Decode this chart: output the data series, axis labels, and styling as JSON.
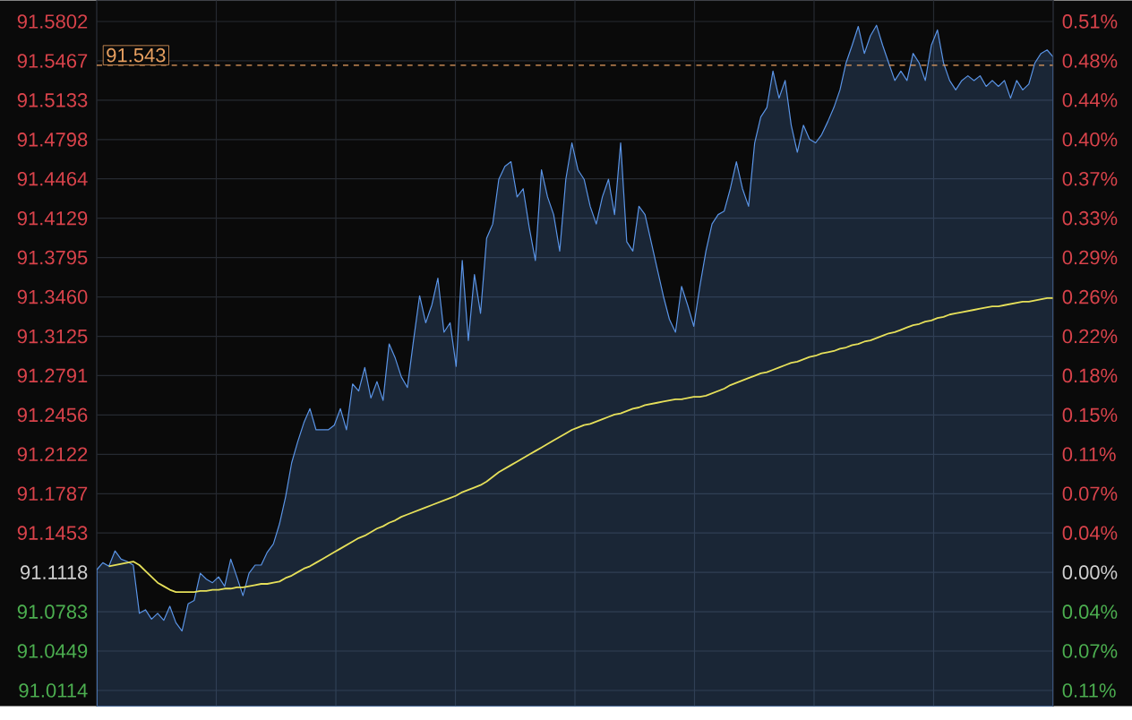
{
  "chart_data": {
    "type": "area",
    "categories": [
      null,
      null,
      null,
      null,
      null,
      null,
      null,
      null,
      null,
      null,
      null,
      null,
      null,
      null,
      null,
      null,
      null,
      null,
      null,
      null,
      null,
      null,
      null,
      null,
      null,
      null,
      null,
      null,
      null,
      null,
      null,
      null,
      null,
      null,
      null,
      null,
      null,
      null,
      null,
      null,
      null,
      null,
      null,
      null,
      null,
      null,
      null,
      null,
      null,
      null,
      null,
      null,
      null,
      null,
      null,
      null,
      null,
      null,
      null,
      null,
      null,
      null,
      null,
      null,
      null,
      null,
      null,
      null,
      null,
      null,
      null,
      null,
      null,
      null,
      null,
      null,
      null,
      null,
      null,
      null,
      null,
      null,
      null,
      null,
      null,
      null,
      null,
      null,
      null,
      null,
      null,
      null,
      null,
      null,
      null,
      null,
      null,
      null,
      null,
      null,
      null,
      null,
      null,
      null,
      null,
      null,
      null,
      null,
      null,
      null,
      null,
      null,
      null,
      null,
      null,
      null,
      null,
      null,
      null,
      null,
      null,
      null,
      null,
      null,
      null,
      null,
      null,
      null,
      null,
      null,
      null,
      null,
      null,
      null,
      null,
      null,
      null,
      null,
      null,
      null,
      null,
      null,
      null,
      null,
      null,
      null,
      null,
      null,
      null,
      null,
      null,
      null,
      null,
      null,
      null,
      null,
      null,
      null
    ],
    "series": [
      {
        "color": "#5a94e6",
        "values": [
          91.114,
          91.12,
          91.117,
          91.13,
          91.123,
          91.121,
          91.118,
          91.077,
          91.08,
          91.072,
          91.077,
          91.071,
          91.083,
          91.069,
          91.062,
          91.085,
          91.088,
          91.111,
          91.106,
          91.103,
          91.108,
          91.1,
          91.123,
          91.108,
          91.092,
          91.111,
          91.118,
          91.118,
          91.129,
          91.136,
          91.153,
          91.176,
          91.205,
          91.223,
          91.239,
          91.251,
          91.233,
          91.233,
          91.233,
          91.237,
          91.251,
          91.233,
          91.272,
          91.266,
          91.286,
          91.26,
          91.274,
          91.258,
          91.306,
          91.294,
          91.278,
          91.269,
          91.309,
          91.347,
          91.324,
          91.339,
          91.362,
          91.316,
          91.324,
          91.287,
          91.377,
          91.309,
          91.365,
          91.332,
          91.396,
          91.408,
          91.446,
          91.457,
          91.461,
          91.431,
          91.438,
          91.405,
          91.377,
          91.454,
          91.431,
          91.416,
          91.385,
          91.446,
          91.477,
          91.454,
          91.446,
          91.423,
          91.408,
          91.431,
          91.446,
          91.416,
          91.477,
          91.393,
          91.385,
          91.423,
          91.416,
          91.393,
          91.37,
          91.347,
          91.327,
          91.316,
          91.355,
          91.339,
          91.321,
          91.355,
          91.385,
          91.408,
          91.416,
          91.419,
          91.438,
          91.461,
          91.438,
          91.423,
          91.477,
          91.499,
          91.507,
          91.538,
          91.515,
          91.53,
          91.492,
          91.469,
          91.492,
          91.48,
          91.477,
          91.484,
          91.495,
          91.507,
          91.522,
          91.545,
          91.56,
          91.576,
          91.553,
          91.568,
          91.577,
          91.56,
          91.545,
          91.53,
          91.538,
          91.53,
          91.553,
          91.545,
          91.53,
          91.56,
          91.573,
          91.545,
          91.53,
          91.522,
          91.53,
          91.534,
          91.53,
          91.534,
          91.525,
          91.53,
          91.525,
          91.53,
          91.515,
          91.53,
          91.522,
          91.527,
          91.545,
          91.553,
          91.556,
          91.55
        ]
      },
      {
        "type": "line",
        "color": "#e6e05a",
        "values": [
          null,
          null,
          91.117,
          91.118,
          91.119,
          91.12,
          91.121,
          91.118,
          91.113,
          91.108,
          91.103,
          91.1,
          91.097,
          91.095,
          91.095,
          91.095,
          91.095,
          91.096,
          91.096,
          91.097,
          91.097,
          91.098,
          91.098,
          91.099,
          91.099,
          91.1,
          91.101,
          91.102,
          91.102,
          91.103,
          91.104,
          91.107,
          91.109,
          91.112,
          91.115,
          91.117,
          91.12,
          91.123,
          91.126,
          91.129,
          91.132,
          91.135,
          91.138,
          91.141,
          91.143,
          91.146,
          91.149,
          91.151,
          91.154,
          91.156,
          91.159,
          91.161,
          91.163,
          91.165,
          91.167,
          91.169,
          91.171,
          91.173,
          91.175,
          91.177,
          91.18,
          91.182,
          91.184,
          91.186,
          91.189,
          91.193,
          91.197,
          91.2,
          91.203,
          91.206,
          91.209,
          91.212,
          91.215,
          91.218,
          91.221,
          91.224,
          91.227,
          91.23,
          91.233,
          91.235,
          91.237,
          91.238,
          91.24,
          91.242,
          91.244,
          91.246,
          91.247,
          91.249,
          91.251,
          91.252,
          91.254,
          91.255,
          91.256,
          91.257,
          91.258,
          91.259,
          91.259,
          91.26,
          91.261,
          91.261,
          91.262,
          91.264,
          91.266,
          91.268,
          91.271,
          91.273,
          91.275,
          91.277,
          91.279,
          91.281,
          91.282,
          91.284,
          91.286,
          91.288,
          91.29,
          91.291,
          91.293,
          91.295,
          91.296,
          91.298,
          91.299,
          91.3,
          91.302,
          91.303,
          91.305,
          91.306,
          91.308,
          91.309,
          91.311,
          91.313,
          91.315,
          91.316,
          91.318,
          91.32,
          91.322,
          91.323,
          91.325,
          91.326,
          91.328,
          91.329,
          91.331,
          91.332,
          91.333,
          91.334,
          91.335,
          91.336,
          91.337,
          91.338,
          91.338,
          91.339,
          91.34,
          91.341,
          91.342,
          91.342,
          91.343,
          91.344,
          91.345,
          91.345
        ]
      }
    ],
    "ylim": [
      90.998,
      91.598
    ],
    "yticks": [
      91.5802,
      91.5467,
      91.5133,
      91.4798,
      91.4464,
      91.4129,
      91.3795,
      {
        "value": 91.346,
        "label": "91.3460"
      },
      91.3125,
      91.2791,
      91.2456,
      91.2122,
      91.1787,
      91.1453,
      91.1118,
      91.0783,
      91.0449,
      91.0114
    ],
    "y2lim": [
      -0.1249,
      0.5336
    ],
    "y2ticks": [
      {
        "value": 0.5141,
        "label": "0.51%"
      },
      {
        "value": 0.4773,
        "label": "0.48%"
      },
      {
        "value": 0.4407,
        "label": "0.44%"
      },
      {
        "value": 0.4039,
        "label": "0.40%"
      },
      {
        "value": 0.3672,
        "label": "0.37%"
      },
      {
        "value": 0.3305,
        "label": "0.33%"
      },
      {
        "value": 0.2938,
        "label": "0.29%"
      },
      {
        "value": 0.257,
        "label": "0.26%"
      },
      {
        "value": 0.2203,
        "label": "0.22%"
      },
      {
        "value": 0.1836,
        "label": "0.18%"
      },
      {
        "value": 0.1469,
        "label": "0.15%"
      },
      {
        "value": 0.1102,
        "label": "0.11%"
      },
      {
        "value": 0.0734,
        "label": "0.07%"
      },
      {
        "value": 0.0368,
        "label": "0.04%"
      },
      {
        "value": 0,
        "label": "0.00%"
      },
      {
        "value": -0.0368,
        "label": "0.04%"
      },
      {
        "value": -0.0734,
        "label": "0.07%"
      },
      {
        "value": -0.1102,
        "label": "0.11%"
      }
    ],
    "ref_lines": [
      {
        "axis": "y",
        "value": 91.543,
        "label": "91.543",
        "color": "#e8a060",
        "line_style": "dashed"
      }
    ],
    "grid": true
  }
}
